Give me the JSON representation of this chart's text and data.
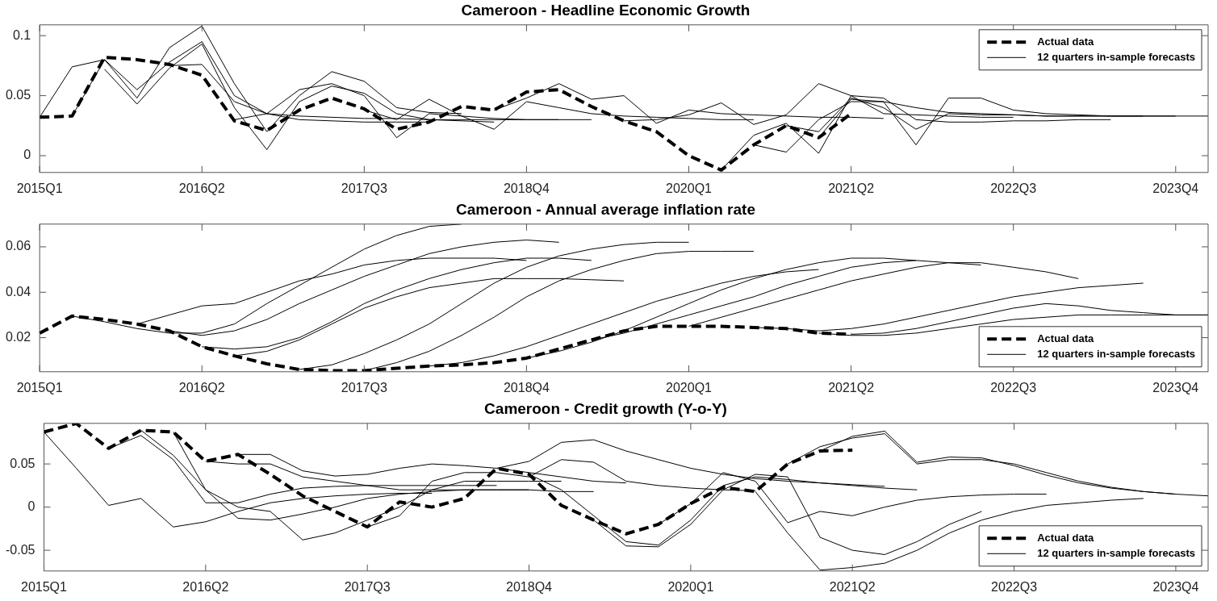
{
  "chart_data": [
    {
      "type": "line",
      "title": "Cameroon - Headline Economic Growth",
      "legend": "top right",
      "ylim": [
        -0.014,
        0.109
      ],
      "yticks": [
        0,
        0.05,
        0.1
      ],
      "categories": [
        "2015Q1",
        null,
        null,
        null,
        null,
        "2016Q2",
        null,
        null,
        null,
        null,
        "2017Q3",
        null,
        null,
        null,
        null,
        "2018Q4",
        null,
        null,
        null,
        null,
        "2020Q1",
        null,
        null,
        null,
        null,
        "2021Q2",
        null,
        null,
        null,
        null,
        "2022Q3",
        null,
        null,
        null,
        null,
        "2023Q4",
        null
      ],
      "series": [
        {
          "name": "Actual data",
          "color": "#000000",
          "line_style": "dashed",
          "values": [
            0.032,
            0.033,
            0.082,
            0.08,
            0.076,
            0.067,
            0.029,
            0.021,
            0.038,
            0.048,
            0.039,
            0.022,
            0.028,
            0.041,
            0.038,
            0.053,
            0.055,
            0.041,
            0.029,
            0.02,
            0.0,
            -0.012,
            0.009,
            0.025,
            0.015,
            0.035,
            null,
            null,
            null,
            null,
            null,
            null,
            null,
            null,
            null,
            null,
            null
          ]
        },
        {
          "name": "12 quarters in-sample forecasts",
          "color": "#000000",
          "line_style": "solid",
          "values": [
            0.032,
            0.074,
            0.08,
            0.055,
            0.078,
            0.095,
            0.05,
            0.035,
            0.03,
            0.029,
            0.028,
            0.028,
            0.028,
            null,
            null,
            null,
            null,
            null,
            null,
            null,
            null,
            null,
            null,
            null,
            null,
            null,
            null,
            null,
            null,
            null,
            null,
            null,
            null,
            null,
            null,
            null,
            null
          ]
        },
        {
          "color": "#000000",
          "line_style": "solid",
          "values": [
            null,
            0.033,
            0.08,
            0.048,
            0.09,
            0.108,
            0.06,
            0.02,
            0.05,
            0.07,
            0.062,
            0.04,
            0.036,
            0.035,
            null,
            null,
            null,
            null,
            null,
            null,
            null,
            null,
            null,
            null,
            null,
            null,
            null,
            null,
            null,
            null,
            null,
            null,
            null,
            null,
            null,
            null,
            null
          ]
        },
        {
          "color": "#000000",
          "line_style": "solid",
          "values": [
            null,
            null,
            0.072,
            0.043,
            0.073,
            0.093,
            0.04,
            0.005,
            0.045,
            0.058,
            0.052,
            0.035,
            0.03,
            0.029,
            0.028,
            null,
            null,
            null,
            null,
            null,
            null,
            null,
            null,
            null,
            null,
            null,
            null,
            null,
            null,
            null,
            null,
            null,
            null,
            null,
            null,
            null,
            null
          ]
        },
        {
          "color": "#000000",
          "line_style": "solid",
          "values": [
            null,
            null,
            null,
            null,
            0.075,
            0.076,
            0.045,
            0.035,
            0.033,
            0.032,
            0.031,
            0.031,
            0.03,
            0.03,
            0.03,
            0.03,
            0.03,
            null,
            null,
            null,
            null,
            null,
            null,
            null,
            null,
            null,
            null,
            null,
            null,
            null,
            null,
            null,
            null,
            null,
            null,
            null,
            null
          ]
        },
        {
          "color": "#000000",
          "line_style": "solid",
          "values": [
            null,
            null,
            null,
            null,
            null,
            null,
            0.03,
            0.035,
            0.055,
            0.06,
            0.05,
            0.015,
            0.035,
            0.033,
            0.031,
            0.03,
            0.03,
            0.03,
            null,
            null,
            null,
            null,
            null,
            null,
            null,
            null,
            null,
            null,
            null,
            null,
            null,
            null,
            null,
            null,
            null,
            null,
            null
          ]
        },
        {
          "color": "#000000",
          "line_style": "solid",
          "values": [
            null,
            null,
            null,
            null,
            null,
            null,
            null,
            null,
            null,
            null,
            0.038,
            0.03,
            0.047,
            0.033,
            0.022,
            0.045,
            0.04,
            0.035,
            0.033,
            0.032,
            0.031,
            0.03,
            0.03,
            null,
            null,
            null,
            null,
            null,
            null,
            null,
            null,
            null,
            null,
            null,
            null,
            null,
            null
          ]
        },
        {
          "color": "#000000",
          "line_style": "solid",
          "values": [
            null,
            null,
            null,
            null,
            null,
            null,
            null,
            null,
            null,
            null,
            null,
            null,
            null,
            null,
            0.038,
            0.048,
            0.06,
            0.047,
            0.05,
            0.027,
            0.038,
            0.035,
            0.034,
            0.033,
            0.032,
            0.032,
            0.031,
            null,
            null,
            null,
            null,
            null,
            null,
            null,
            null,
            null,
            null
          ]
        },
        {
          "color": "#000000",
          "line_style": "solid",
          "values": [
            null,
            null,
            null,
            null,
            null,
            null,
            null,
            null,
            null,
            null,
            null,
            null,
            null,
            null,
            null,
            null,
            null,
            null,
            0.029,
            0.03,
            0.034,
            0.044,
            0.026,
            0.034,
            0.06,
            0.05,
            0.035,
            0.034,
            0.033,
            0.032,
            0.032,
            null,
            null,
            null,
            null,
            null,
            null
          ]
        },
        {
          "color": "#000000",
          "line_style": "solid",
          "values": [
            null,
            null,
            null,
            null,
            null,
            null,
            null,
            null,
            null,
            null,
            null,
            null,
            null,
            null,
            null,
            null,
            null,
            null,
            null,
            null,
            null,
            -0.012,
            0.017,
            0.027,
            0.002,
            0.05,
            0.048,
            0.03,
            0.028,
            0.028,
            0.029,
            0.029,
            0.03,
            0.03,
            null,
            null,
            null
          ]
        },
        {
          "color": "#000000",
          "line_style": "solid",
          "values": [
            null,
            null,
            null,
            null,
            null,
            null,
            null,
            null,
            null,
            null,
            null,
            null,
            null,
            null,
            null,
            null,
            null,
            null,
            null,
            null,
            null,
            null,
            0.009,
            0.003,
            0.03,
            0.045,
            0.045,
            0.009,
            0.048,
            0.048,
            0.038,
            0.035,
            0.034,
            0.033,
            0.033,
            null,
            null
          ]
        },
        {
          "color": "#000000",
          "line_style": "solid",
          "values": [
            null,
            null,
            null,
            null,
            null,
            null,
            null,
            null,
            null,
            null,
            null,
            null,
            null,
            null,
            null,
            null,
            null,
            null,
            null,
            null,
            null,
            null,
            null,
            0.025,
            0.02,
            0.048,
            0.04,
            0.022,
            0.035,
            0.034,
            0.034,
            0.033,
            0.033,
            0.033,
            0.033,
            0.033,
            null
          ]
        },
        {
          "color": "#000000",
          "line_style": "solid",
          "values": [
            null,
            null,
            null,
            null,
            null,
            null,
            null,
            null,
            null,
            null,
            null,
            null,
            null,
            null,
            null,
            null,
            null,
            null,
            null,
            null,
            null,
            null,
            null,
            null,
            0.015,
            0.047,
            0.045,
            0.04,
            0.036,
            0.035,
            0.034,
            0.033,
            0.033,
            0.033,
            0.033,
            0.033,
            0.033
          ]
        }
      ]
    },
    {
      "type": "line",
      "title": "Cameroon - Annual average inflation rate",
      "legend": "bottom right",
      "ylim": [
        0.005,
        0.07
      ],
      "yticks": [
        0.02,
        0.04,
        0.06
      ],
      "categories": [
        "2015Q1",
        null,
        null,
        null,
        null,
        "2016Q2",
        null,
        null,
        null,
        null,
        "2017Q3",
        null,
        null,
        null,
        null,
        "2018Q4",
        null,
        null,
        null,
        null,
        "2020Q1",
        null,
        null,
        null,
        null,
        "2021Q2",
        null,
        null,
        null,
        null,
        "2022Q3",
        null,
        null,
        null,
        null,
        "2023Q4",
        null
      ],
      "series": [
        {
          "name": "Actual data",
          "color": "#000000",
          "line_style": "dashed",
          "values": [
            0.022,
            0.0295,
            0.028,
            0.026,
            0.023,
            0.016,
            0.012,
            0.0085,
            0.006,
            0.0055,
            0.0055,
            0.0065,
            0.0075,
            0.008,
            0.009,
            0.011,
            0.015,
            0.019,
            0.023,
            0.025,
            0.025,
            0.025,
            0.0245,
            0.024,
            0.022,
            0.0215,
            null,
            null,
            null,
            null,
            null,
            null,
            null,
            null,
            null,
            null,
            null
          ]
        },
        {
          "name": "12 quarters in-sample forecasts",
          "color": "#000000",
          "line_style": "solid",
          "values": [
            null,
            0.0295,
            0.027,
            0.024,
            0.022,
            0.022,
            0.026,
            0.035,
            0.043,
            0.051,
            0.059,
            0.065,
            0.069,
            0.07,
            null,
            null,
            null,
            null,
            null,
            null,
            null,
            null,
            null,
            null,
            null,
            null,
            null,
            null,
            null,
            null,
            null,
            null,
            null,
            null,
            null,
            null,
            null
          ]
        },
        {
          "color": "#000000",
          "line_style": "solid",
          "values": [
            null,
            null,
            null,
            0.026,
            0.03,
            0.034,
            0.035,
            0.04,
            0.045,
            0.048,
            0.052,
            0.054,
            0.055,
            0.055,
            0.055,
            0.054,
            null,
            null,
            null,
            null,
            null,
            null,
            null,
            null,
            null,
            null,
            null,
            null,
            null,
            null,
            null,
            null,
            null,
            null,
            null,
            null,
            null
          ]
        },
        {
          "color": "#000000",
          "line_style": "solid",
          "values": [
            null,
            null,
            null,
            null,
            0.023,
            0.021,
            0.023,
            0.028,
            0.035,
            0.041,
            0.047,
            0.052,
            0.057,
            0.06,
            0.062,
            0.063,
            0.062,
            null,
            null,
            null,
            null,
            null,
            null,
            null,
            null,
            null,
            null,
            null,
            null,
            null,
            null,
            null,
            null,
            null,
            null,
            null,
            null
          ]
        },
        {
          "color": "#000000",
          "line_style": "solid",
          "values": [
            null,
            null,
            null,
            null,
            null,
            0.016,
            0.015,
            0.016,
            0.02,
            0.027,
            0.035,
            0.041,
            0.046,
            0.05,
            0.053,
            0.055,
            0.055,
            0.054,
            null,
            null,
            null,
            null,
            null,
            null,
            null,
            null,
            null,
            null,
            null,
            null,
            null,
            null,
            null,
            null,
            null,
            null,
            null
          ]
        },
        {
          "color": "#000000",
          "line_style": "solid",
          "values": [
            null,
            null,
            null,
            null,
            null,
            null,
            0.012,
            0.014,
            0.019,
            0.026,
            0.033,
            0.038,
            0.042,
            0.044,
            0.046,
            0.046,
            0.046,
            0.0455,
            0.045,
            null,
            null,
            null,
            null,
            null,
            null,
            null,
            null,
            null,
            null,
            null,
            null,
            null,
            null,
            null,
            null,
            null,
            null
          ]
        },
        {
          "color": "#000000",
          "line_style": "solid",
          "values": [
            null,
            null,
            null,
            null,
            null,
            null,
            null,
            null,
            0.006,
            0.008,
            0.013,
            0.019,
            0.026,
            0.035,
            0.044,
            0.051,
            0.056,
            0.059,
            0.061,
            0.062,
            0.062,
            null,
            null,
            null,
            null,
            null,
            null,
            null,
            null,
            null,
            null,
            null,
            null,
            null,
            null,
            null,
            null
          ]
        },
        {
          "color": "#000000",
          "line_style": "solid",
          "values": [
            null,
            null,
            null,
            null,
            null,
            null,
            null,
            null,
            null,
            null,
            0.0055,
            0.009,
            0.014,
            0.021,
            0.029,
            0.038,
            0.045,
            0.05,
            0.054,
            0.057,
            0.058,
            0.058,
            0.058,
            null,
            null,
            null,
            null,
            null,
            null,
            null,
            null,
            null,
            null,
            null,
            null,
            null,
            null
          ]
        },
        {
          "color": "#000000",
          "line_style": "solid",
          "values": [
            null,
            null,
            null,
            null,
            null,
            null,
            null,
            null,
            null,
            null,
            null,
            null,
            0.0075,
            0.009,
            0.012,
            0.016,
            0.021,
            0.026,
            0.031,
            0.036,
            0.04,
            0.044,
            0.047,
            0.049,
            0.05,
            null,
            null,
            null,
            null,
            null,
            null,
            null,
            null,
            null,
            null,
            null,
            null
          ]
        },
        {
          "color": "#000000",
          "line_style": "solid",
          "values": [
            null,
            null,
            null,
            null,
            null,
            null,
            null,
            null,
            null,
            null,
            null,
            null,
            null,
            null,
            null,
            0.011,
            0.014,
            0.018,
            0.023,
            0.029,
            0.035,
            0.041,
            0.046,
            0.05,
            0.053,
            0.055,
            0.055,
            0.054,
            null,
            null,
            null,
            null,
            null,
            null,
            null,
            null,
            null
          ]
        },
        {
          "color": "#000000",
          "line_style": "solid",
          "values": [
            null,
            null,
            null,
            null,
            null,
            null,
            null,
            null,
            null,
            null,
            null,
            null,
            null,
            null,
            null,
            null,
            null,
            0.019,
            0.022,
            0.026,
            0.03,
            0.034,
            0.038,
            0.043,
            0.047,
            0.051,
            0.053,
            0.054,
            0.053,
            0.052,
            null,
            null,
            null,
            null,
            null,
            null,
            null
          ]
        },
        {
          "color": "#000000",
          "line_style": "solid",
          "values": [
            null,
            null,
            null,
            null,
            null,
            null,
            null,
            null,
            null,
            null,
            null,
            null,
            null,
            null,
            null,
            null,
            null,
            null,
            null,
            null,
            0.025,
            0.029,
            0.033,
            0.037,
            0.041,
            0.045,
            0.048,
            0.051,
            0.053,
            0.053,
            0.051,
            0.049,
            0.046,
            null,
            null,
            null,
            null
          ]
        },
        {
          "color": "#000000",
          "line_style": "solid",
          "values": [
            null,
            null,
            null,
            null,
            null,
            null,
            null,
            null,
            null,
            null,
            null,
            null,
            null,
            null,
            null,
            null,
            null,
            null,
            null,
            null,
            null,
            null,
            0.0245,
            0.024,
            0.023,
            0.024,
            0.026,
            0.029,
            0.032,
            0.035,
            0.038,
            0.04,
            0.042,
            0.043,
            0.044,
            null,
            null
          ]
        },
        {
          "color": "#000000",
          "line_style": "solid",
          "values": [
            null,
            null,
            null,
            null,
            null,
            null,
            null,
            null,
            null,
            null,
            null,
            null,
            null,
            null,
            null,
            null,
            null,
            null,
            null,
            null,
            null,
            null,
            null,
            null,
            0.022,
            0.021,
            0.021,
            0.022,
            0.024,
            0.026,
            0.028,
            0.029,
            0.03,
            0.03,
            0.03,
            0.03,
            0.03
          ]
        },
        {
          "color": "#000000",
          "line_style": "solid",
          "values": [
            null,
            null,
            null,
            null,
            null,
            null,
            null,
            null,
            null,
            null,
            null,
            null,
            null,
            null,
            null,
            null,
            null,
            null,
            null,
            null,
            null,
            null,
            null,
            null,
            null,
            0.0215,
            0.022,
            0.024,
            0.027,
            0.03,
            0.033,
            0.035,
            0.034,
            0.032,
            0.031,
            0.03,
            0.03
          ]
        }
      ]
    },
    {
      "type": "line",
      "title": "Cameroon - Credit growth (Y-o-Y)",
      "legend": "bottom right",
      "ylim": [
        -0.074,
        0.097
      ],
      "yticks": [
        -0.05,
        0,
        0.05
      ],
      "categories": [
        "2015Q1",
        null,
        null,
        null,
        null,
        "2016Q2",
        null,
        null,
        null,
        null,
        "2017Q3",
        null,
        null,
        null,
        null,
        "2018Q4",
        null,
        null,
        null,
        null,
        "2020Q1",
        null,
        null,
        null,
        null,
        "2021Q2",
        null,
        null,
        null,
        null,
        "2022Q3",
        null,
        null,
        null,
        null,
        "2023Q4",
        null
      ],
      "series": [
        {
          "name": "Actual data",
          "color": "#000000",
          "line_style": "dashed",
          "values": [
            0.087,
            0.097,
            0.068,
            0.089,
            0.087,
            0.053,
            0.061,
            0.038,
            0.013,
            -0.005,
            -0.023,
            0.006,
            0.0,
            0.01,
            0.045,
            0.038,
            0.002,
            -0.015,
            -0.031,
            -0.02,
            0.004,
            0.023,
            0.018,
            0.05,
            0.065,
            0.066,
            null,
            null,
            null,
            null,
            null,
            null,
            null,
            null,
            null,
            null,
            null
          ]
        },
        {
          "name": "12 quarters in-sample forecasts",
          "color": "#000000",
          "line_style": "solid",
          "values": [
            0.087,
            0.045,
            0.002,
            0.01,
            -0.023,
            -0.017,
            -0.005,
            0.005,
            0.01,
            0.013,
            0.015,
            0.016,
            0.016,
            null,
            null,
            null,
            null,
            null,
            null,
            null,
            null,
            null,
            null,
            null,
            null,
            null,
            null,
            null,
            null,
            null,
            null,
            null,
            null,
            null,
            null,
            null,
            null
          ]
        },
        {
          "color": "#000000",
          "line_style": "solid",
          "values": [
            null,
            null,
            0.068,
            0.083,
            0.055,
            0.005,
            0.005,
            0.015,
            0.022,
            0.024,
            0.025,
            0.025,
            0.025,
            0.025,
            0.025,
            null,
            null,
            null,
            null,
            null,
            null,
            null,
            null,
            null,
            null,
            null,
            null,
            null,
            null,
            null,
            null,
            null,
            null,
            null,
            null,
            null,
            null
          ]
        },
        {
          "color": "#000000",
          "line_style": "solid",
          "values": [
            null,
            null,
            null,
            0.089,
            0.06,
            0.02,
            -0.013,
            -0.015,
            -0.008,
            0.0,
            0.01,
            0.015,
            0.018,
            0.02,
            0.02,
            0.02,
            null,
            null,
            null,
            null,
            null,
            null,
            null,
            null,
            null,
            null,
            null,
            null,
            null,
            null,
            null,
            null,
            null,
            null,
            null,
            null,
            null
          ]
        },
        {
          "color": "#000000",
          "line_style": "solid",
          "values": [
            null,
            null,
            null,
            null,
            0.087,
            0.02,
            0.0,
            -0.005,
            -0.038,
            -0.03,
            -0.015,
            0.0,
            0.02,
            0.03,
            0.03,
            0.03,
            0.03,
            null,
            null,
            null,
            null,
            null,
            null,
            null,
            null,
            null,
            null,
            null,
            null,
            null,
            null,
            null,
            null,
            null,
            null,
            null,
            null
          ]
        },
        {
          "color": "#000000",
          "line_style": "solid",
          "values": [
            null,
            null,
            null,
            null,
            null,
            0.053,
            0.05,
            0.05,
            0.035,
            0.03,
            0.025,
            0.02,
            0.02,
            0.02,
            0.02,
            0.02,
            0.018,
            0.018,
            null,
            null,
            null,
            null,
            null,
            null,
            null,
            null,
            null,
            null,
            null,
            null,
            null,
            null,
            null,
            null,
            null,
            null,
            null
          ]
        },
        {
          "color": "#000000",
          "line_style": "solid",
          "values": [
            null,
            null,
            null,
            null,
            null,
            null,
            0.061,
            0.061,
            0.042,
            0.036,
            0.038,
            0.045,
            0.05,
            0.048,
            0.045,
            0.04,
            0.035,
            0.03,
            0.028,
            null,
            null,
            null,
            null,
            null,
            null,
            null,
            null,
            null,
            null,
            null,
            null,
            null,
            null,
            null,
            null,
            null,
            null
          ]
        },
        {
          "color": "#000000",
          "line_style": "solid",
          "values": [
            null,
            null,
            null,
            null,
            null,
            null,
            null,
            null,
            null,
            null,
            -0.023,
            -0.01,
            0.03,
            0.04,
            0.04,
            0.035,
            0.055,
            0.052,
            0.03,
            0.025,
            0.022,
            0.02,
            0.019,
            null,
            null,
            null,
            null,
            null,
            null,
            null,
            null,
            null,
            null,
            null,
            null,
            null,
            null
          ]
        },
        {
          "color": "#000000",
          "line_style": "solid",
          "values": [
            null,
            null,
            null,
            null,
            null,
            null,
            null,
            null,
            null,
            null,
            null,
            null,
            null,
            null,
            0.045,
            0.053,
            0.075,
            0.078,
            0.065,
            0.055,
            0.045,
            0.038,
            0.033,
            0.03,
            0.028,
            0.026,
            0.024,
            null,
            null,
            null,
            null,
            null,
            null,
            null,
            null,
            null,
            null
          ]
        },
        {
          "color": "#000000",
          "line_style": "solid",
          "values": [
            null,
            null,
            null,
            null,
            null,
            null,
            null,
            null,
            null,
            null,
            null,
            null,
            null,
            null,
            null,
            0.038,
            0.02,
            -0.01,
            -0.04,
            -0.044,
            -0.015,
            0.025,
            0.035,
            0.032,
            0.028,
            0.025,
            0.022,
            0.02,
            null,
            null,
            null,
            null,
            null,
            null,
            null,
            null,
            null
          ]
        },
        {
          "color": "#000000",
          "line_style": "solid",
          "values": [
            null,
            null,
            null,
            null,
            null,
            null,
            null,
            null,
            null,
            null,
            null,
            null,
            null,
            null,
            null,
            null,
            null,
            -0.015,
            -0.045,
            -0.046,
            -0.02,
            0.02,
            0.038,
            0.035,
            -0.035,
            -0.05,
            -0.055,
            -0.04,
            -0.02,
            -0.005,
            null,
            null,
            null,
            null,
            null,
            null,
            null
          ]
        },
        {
          "color": "#000000",
          "line_style": "solid",
          "values": [
            null,
            null,
            null,
            null,
            null,
            null,
            null,
            null,
            null,
            null,
            null,
            null,
            null,
            null,
            null,
            null,
            null,
            null,
            null,
            -0.02,
            0.004,
            0.04,
            0.03,
            -0.018,
            -0.005,
            -0.01,
            0.0,
            0.008,
            0.012,
            0.014,
            0.015,
            0.015,
            null,
            null,
            null,
            null,
            null
          ]
        },
        {
          "color": "#000000",
          "line_style": "solid",
          "values": [
            null,
            null,
            null,
            null,
            null,
            null,
            null,
            null,
            null,
            null,
            null,
            null,
            null,
            null,
            null,
            null,
            null,
            null,
            null,
            null,
            null,
            null,
            0.018,
            -0.03,
            -0.073,
            -0.07,
            -0.065,
            -0.05,
            -0.03,
            -0.015,
            -0.005,
            0.002,
            0.005,
            0.008,
            0.01,
            null,
            null
          ]
        },
        {
          "color": "#000000",
          "line_style": "solid",
          "values": [
            null,
            null,
            null,
            null,
            null,
            null,
            null,
            null,
            null,
            null,
            null,
            null,
            null,
            null,
            null,
            null,
            null,
            null,
            null,
            null,
            null,
            null,
            null,
            0.05,
            0.07,
            0.08,
            0.085,
            0.05,
            0.055,
            0.055,
            0.05,
            0.04,
            0.03,
            0.023,
            0.018,
            0.015,
            null
          ]
        },
        {
          "color": "#000000",
          "line_style": "solid",
          "values": [
            null,
            null,
            null,
            null,
            null,
            null,
            null,
            null,
            null,
            null,
            null,
            null,
            null,
            null,
            null,
            null,
            null,
            null,
            null,
            null,
            null,
            null,
            null,
            null,
            0.065,
            0.082,
            0.088,
            0.052,
            0.058,
            0.057,
            0.048,
            0.037,
            0.028,
            0.022,
            0.018,
            0.015,
            0.013
          ]
        }
      ]
    }
  ]
}
